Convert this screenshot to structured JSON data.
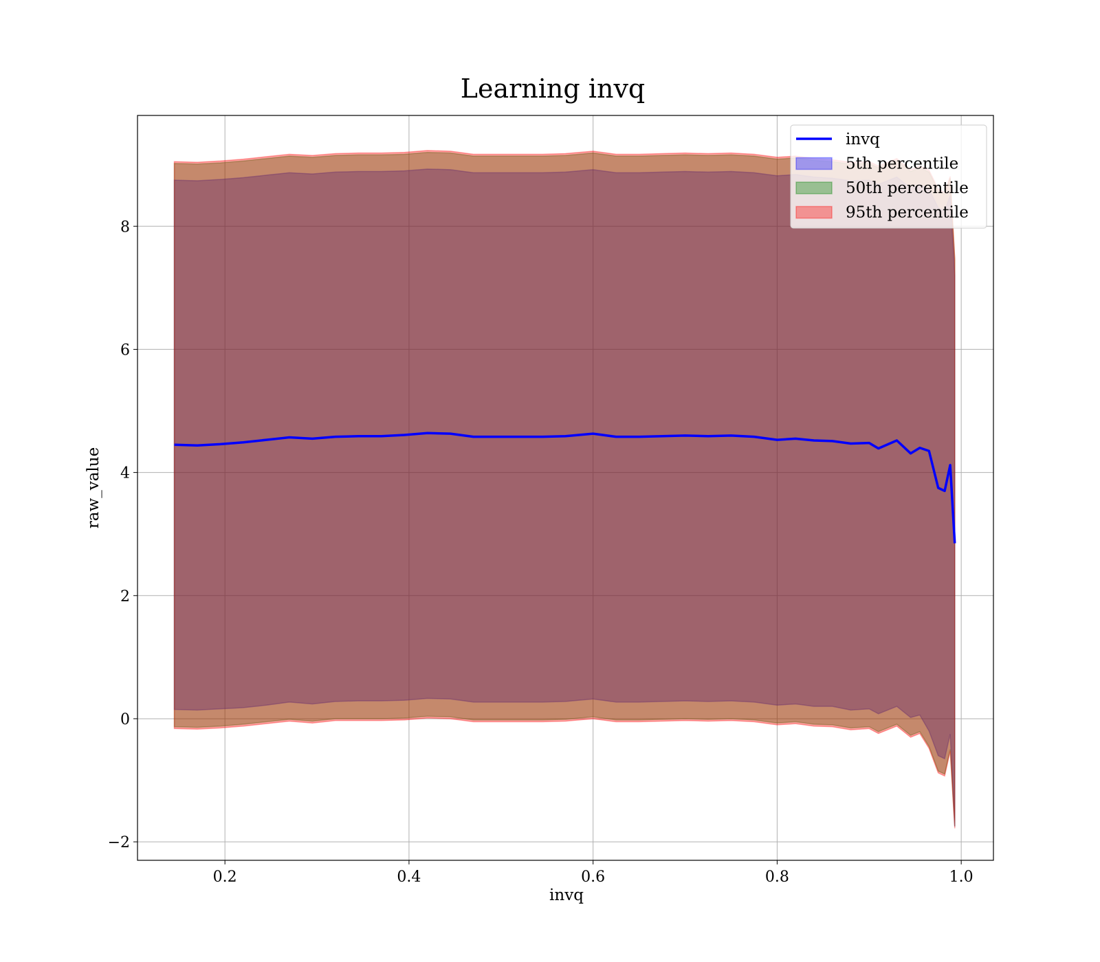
{
  "chart_data": {
    "type": "area",
    "title": "Learning invq",
    "xlabel": "invq",
    "ylabel": "raw_value",
    "xlim": [
      0.105,
      1.035
    ],
    "ylim": [
      -2.3,
      9.8
    ],
    "x_ticks": [
      0.2,
      0.4,
      0.6,
      0.8,
      1.0
    ],
    "x_tick_labels": [
      "0.2",
      "0.4",
      "0.6",
      "0.8",
      "1.0"
    ],
    "y_ticks": [
      -2,
      0,
      2,
      4,
      6,
      8
    ],
    "y_tick_labels": [
      "−2",
      "0",
      "2",
      "4",
      "6",
      "8"
    ],
    "grid": true,
    "legend_position": "top-right",
    "legend": [
      {
        "label": "invq",
        "kind": "line",
        "color": "#0000ff"
      },
      {
        "label": "5th percentile",
        "kind": "patch",
        "color": "#0000ff"
      },
      {
        "label": "50th percentile",
        "kind": "patch",
        "color": "#008000"
      },
      {
        "label": "95th percentile",
        "kind": "patch",
        "color": "#ff0000"
      }
    ],
    "x": [
      0.145,
      0.17,
      0.195,
      0.22,
      0.245,
      0.27,
      0.295,
      0.32,
      0.345,
      0.37,
      0.395,
      0.42,
      0.445,
      0.47,
      0.495,
      0.52,
      0.545,
      0.57,
      0.6,
      0.625,
      0.65,
      0.675,
      0.7,
      0.725,
      0.75,
      0.775,
      0.8,
      0.82,
      0.84,
      0.86,
      0.88,
      0.9,
      0.91,
      0.93,
      0.945,
      0.955,
      0.965,
      0.975,
      0.982,
      0.988,
      0.993
    ],
    "series": [
      {
        "name": "invq",
        "type": "line",
        "color": "#0000ff",
        "values": [
          4.45,
          4.44,
          4.46,
          4.49,
          4.53,
          4.57,
          4.55,
          4.58,
          4.59,
          4.59,
          4.61,
          4.64,
          4.63,
          4.58,
          4.58,
          4.58,
          4.58,
          4.59,
          4.63,
          4.58,
          4.58,
          4.59,
          4.6,
          4.59,
          4.6,
          4.58,
          4.53,
          4.55,
          4.52,
          4.51,
          4.47,
          4.48,
          4.39,
          4.52,
          4.31,
          4.4,
          4.35,
          3.75,
          3.7,
          4.12,
          2.85
        ]
      },
      {
        "name": "5th percentile",
        "type": "band",
        "color": "#0000ff",
        "lower": [
          0.15,
          0.14,
          0.16,
          0.18,
          0.22,
          0.27,
          0.24,
          0.28,
          0.29,
          0.29,
          0.3,
          0.33,
          0.32,
          0.27,
          0.27,
          0.27,
          0.27,
          0.28,
          0.32,
          0.27,
          0.27,
          0.28,
          0.29,
          0.28,
          0.29,
          0.27,
          0.22,
          0.24,
          0.2,
          0.2,
          0.14,
          0.16,
          0.08,
          0.2,
          0.02,
          0.06,
          -0.2,
          -0.6,
          -0.65,
          -0.25,
          -1.75
        ],
        "upper": [
          8.75,
          8.74,
          8.76,
          8.79,
          8.83,
          8.87,
          8.85,
          8.88,
          8.89,
          8.89,
          8.9,
          8.93,
          8.92,
          8.87,
          8.87,
          8.87,
          8.87,
          8.88,
          8.92,
          8.87,
          8.87,
          8.88,
          8.89,
          8.88,
          8.89,
          8.87,
          8.82,
          8.84,
          8.8,
          8.78,
          8.74,
          8.75,
          8.68,
          8.8,
          8.62,
          8.68,
          8.6,
          8.3,
          8.25,
          8.5,
          7.2
        ]
      },
      {
        "name": "50th percentile",
        "type": "band",
        "color": "#008000",
        "lower": [
          -0.13,
          -0.14,
          -0.12,
          -0.09,
          -0.05,
          -0.01,
          -0.04,
          0.0,
          0.0,
          0.0,
          0.01,
          0.04,
          0.03,
          -0.02,
          -0.02,
          -0.02,
          -0.02,
          -0.01,
          0.03,
          -0.02,
          -0.02,
          -0.01,
          0.0,
          -0.01,
          0.0,
          -0.02,
          -0.07,
          -0.05,
          -0.09,
          -0.1,
          -0.15,
          -0.13,
          -0.21,
          -0.09,
          -0.27,
          -0.21,
          -0.45,
          -0.85,
          -0.9,
          -0.5,
          -1.75
        ],
        "upper": [
          9.02,
          9.01,
          9.03,
          9.06,
          9.1,
          9.14,
          9.12,
          9.15,
          9.16,
          9.16,
          9.17,
          9.2,
          9.19,
          9.14,
          9.14,
          9.14,
          9.14,
          9.15,
          9.19,
          9.14,
          9.14,
          9.15,
          9.16,
          9.15,
          9.16,
          9.14,
          9.09,
          9.11,
          9.07,
          9.05,
          9.01,
          9.02,
          8.95,
          9.07,
          8.89,
          8.95,
          8.88,
          8.58,
          8.52,
          8.78,
          7.45
        ]
      },
      {
        "name": "95th percentile",
        "type": "band",
        "color": "#ff0000",
        "lower": [
          -0.16,
          -0.17,
          -0.15,
          -0.12,
          -0.08,
          -0.04,
          -0.07,
          -0.03,
          -0.03,
          -0.03,
          -0.02,
          0.01,
          0.0,
          -0.05,
          -0.05,
          -0.05,
          -0.05,
          -0.04,
          0.0,
          -0.05,
          -0.05,
          -0.04,
          -0.03,
          -0.04,
          -0.03,
          -0.05,
          -0.1,
          -0.08,
          -0.12,
          -0.13,
          -0.18,
          -0.16,
          -0.24,
          -0.12,
          -0.3,
          -0.24,
          -0.48,
          -0.88,
          -0.93,
          -0.53,
          -1.78
        ],
        "upper": [
          9.05,
          9.04,
          9.06,
          9.09,
          9.13,
          9.17,
          9.15,
          9.18,
          9.19,
          9.19,
          9.2,
          9.23,
          9.22,
          9.17,
          9.17,
          9.17,
          9.17,
          9.18,
          9.22,
          9.17,
          9.17,
          9.18,
          9.19,
          9.18,
          9.19,
          9.17,
          9.12,
          9.14,
          9.1,
          9.08,
          9.04,
          9.05,
          8.98,
          9.1,
          8.92,
          8.98,
          8.91,
          8.61,
          8.55,
          8.81,
          7.48
        ]
      }
    ]
  }
}
